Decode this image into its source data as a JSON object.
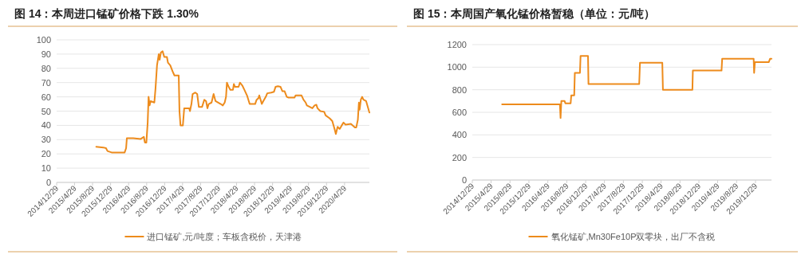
{
  "chart_data": [
    {
      "type": "line",
      "title": "图 14：本周进口锰矿价格下跌 1.30%",
      "legend": "bottom",
      "grid": "y",
      "marker": "none",
      "line_style": "solid",
      "x": [
        "2015-09-23",
        "2015-11-10",
        "2015-11-28",
        "2015-12-08",
        "2016-01-05",
        "2016-04-02",
        "2016-04-12",
        "2016-04-17",
        "2016-05-30",
        "2016-07-20",
        "2016-08-10",
        "2016-08-17",
        "2016-08-27",
        "2016-09-05",
        "2016-09-11",
        "2016-09-18",
        "2016-09-25",
        "2016-10-20",
        "2016-10-28",
        "2016-11-07",
        "2016-11-19",
        "2016-11-25",
        "2016-12-03",
        "2016-12-15",
        "2016-12-26",
        "2017-01-13",
        "2017-01-20",
        "2017-02-05",
        "2017-02-20",
        "2017-03-05",
        "2017-04-03",
        "2017-04-08",
        "2017-04-15",
        "2017-05-01",
        "2017-05-10",
        "2017-06-13",
        "2017-06-18",
        "2017-06-28",
        "2017-07-06",
        "2017-07-24",
        "2017-08-06",
        "2017-08-17",
        "2017-09-08",
        "2017-09-23",
        "2017-10-05",
        "2017-10-14",
        "2017-10-23",
        "2017-11-11",
        "2017-11-25",
        "2017-12-08",
        "2018-01-12",
        "2018-01-26",
        "2018-02-08",
        "2018-02-17",
        "2018-02-23",
        "2018-03-07",
        "2018-03-18",
        "2018-04-05",
        "2018-04-11",
        "2018-04-19",
        "2018-05-13",
        "2018-05-22",
        "2018-06-07",
        "2018-06-21",
        "2018-07-09",
        "2018-07-27",
        "2018-09-02",
        "2018-09-12",
        "2018-09-24",
        "2018-09-30",
        "2018-10-09",
        "2018-10-17",
        "2018-10-27",
        "2018-11-13",
        "2018-11-23",
        "2018-12-20",
        "2019-01-07",
        "2019-01-18",
        "2019-02-03",
        "2019-02-21",
        "2019-03-05",
        "2019-03-20",
        "2019-04-04",
        "2019-04-16",
        "2019-05-26",
        "2019-06-03",
        "2019-07-13",
        "2019-07-26",
        "2019-08-10",
        "2019-08-18",
        "2019-09-06",
        "2019-09-24",
        "2019-10-09",
        "2019-10-21",
        "2019-10-29",
        "2019-11-17",
        "2019-12-13",
        "2019-12-23",
        "2020-01-19",
        "2020-02-06",
        "2020-02-20",
        "2020-03-01",
        "2020-03-13",
        "2020-03-27",
        "2020-04-10",
        "2020-04-22",
        "2020-05-06",
        "2020-06-11",
        "2020-07-08",
        "2020-07-17",
        "2020-07-28",
        "2020-08-04",
        "2020-08-09",
        "2020-08-17",
        "2020-08-26",
        "2020-09-04",
        "2020-09-22",
        "2020-10-06",
        "2020-10-14"
      ],
      "series": [
        {
          "name": "进口锰矿,元/吨度；车板含税价，天津港",
          "color": "#ed8b1c",
          "values": [
            25,
            24.5,
            24,
            22,
            21,
            21,
            24,
            31,
            31,
            30.5,
            32,
            28,
            28,
            42,
            60,
            54,
            57,
            56,
            66,
            82,
            90,
            86,
            91,
            92,
            88,
            88,
            84,
            82,
            78,
            75,
            75,
            50,
            40,
            40,
            52,
            52,
            50,
            55,
            62,
            63,
            62,
            53,
            53,
            58,
            57,
            52,
            55,
            56,
            62,
            57,
            55,
            54,
            56,
            60,
            70,
            67,
            65,
            65,
            69,
            67,
            67,
            70,
            68,
            65,
            61,
            55,
            55,
            58,
            59,
            61,
            58,
            55,
            57,
            60,
            62.5,
            63,
            63.5,
            67,
            67.5,
            67,
            64,
            64,
            60,
            59.5,
            59.5,
            61,
            61,
            58,
            56,
            54,
            53,
            52,
            54,
            54.5,
            52,
            50,
            49.5,
            47,
            45,
            43,
            38,
            34,
            39,
            37.5,
            40,
            42,
            40.5,
            41,
            38.5,
            38.5,
            44,
            56,
            51,
            58,
            60,
            58,
            57,
            52,
            49
          ]
        }
      ],
      "ylim": [
        0,
        100
      ],
      "yticks": [
        0,
        10,
        20,
        30,
        40,
        50,
        60,
        70,
        80,
        90,
        100
      ],
      "xlim": [
        "2014-12-29",
        "2020-10-14"
      ],
      "xticks": [
        {
          "value": "2014-12-29",
          "label": "2014/12/29"
        },
        {
          "value": "2015-04-29",
          "label": "2015/4/29"
        },
        {
          "value": "2015-08-29",
          "label": "2015/8/29"
        },
        {
          "value": "2015-12-29",
          "label": "2015/12/29"
        },
        {
          "value": "2016-04-29",
          "label": "2016/4/29"
        },
        {
          "value": "2016-08-29",
          "label": "2016/8/29"
        },
        {
          "value": "2016-12-29",
          "label": "2016/12/29"
        },
        {
          "value": "2017-04-29",
          "label": "2017/4/29"
        },
        {
          "value": "2017-08-29",
          "label": "2017/8/29"
        },
        {
          "value": "2017-12-29",
          "label": "2017/12/29"
        },
        {
          "value": "2018-04-29",
          "label": "2018/4/29"
        },
        {
          "value": "2018-08-29",
          "label": "2018/8/29"
        },
        {
          "value": "2018-12-29",
          "label": "2018/12/29"
        },
        {
          "value": "2019-04-29",
          "label": "2019/4/29"
        },
        {
          "value": "2019-08-29",
          "label": "2019/8/29"
        },
        {
          "value": "2019-12-29",
          "label": "2019/12/29"
        },
        {
          "value": "2020-04-29",
          "label": "2020/4/29"
        }
      ]
    },
    {
      "type": "line",
      "title": "图 15：本周国产氧化锰价格暂稳（单位：元/吨）",
      "legend": "bottom",
      "grid": "y",
      "marker": "none",
      "line_style": "solid",
      "x": [
        "2015-07-09",
        "2016-07-16",
        "2016-07-20",
        "2016-07-25",
        "2016-08-15",
        "2016-08-20",
        "2016-09-23",
        "2016-09-27",
        "2016-10-16",
        "2016-10-20",
        "2016-11-22",
        "2016-11-26",
        "2017-01-13",
        "2017-01-16",
        "2017-12-09",
        "2017-12-14",
        "2018-05-07",
        "2018-05-11",
        "2018-11-17",
        "2018-11-20",
        "2019-05-24",
        "2019-05-28",
        "2019-12-17",
        "2019-12-20",
        "2019-12-25",
        "2020-03-24",
        "2020-04-01",
        "2020-04-10"
      ],
      "series": [
        {
          "name": "氧化锰矿,Mn30Fe10P双零块，出厂不含税",
          "color": "#ed8b1c",
          "values": [
            670,
            670,
            550,
            700,
            700,
            680,
            680,
            750,
            750,
            950,
            950,
            1100,
            1100,
            850,
            850,
            1040,
            1040,
            800,
            800,
            970,
            970,
            1075,
            1075,
            950,
            1045,
            1045,
            1075,
            1075
          ]
        }
      ],
      "ylim": [
        0,
        1200
      ],
      "yticks": [
        0,
        200,
        400,
        600,
        800,
        1000,
        1200
      ],
      "xlim": [
        "2014-12-29",
        "2020-04-10"
      ],
      "xticks": [
        {
          "value": "2014-12-29",
          "label": "2014/12/29"
        },
        {
          "value": "2015-04-29",
          "label": "2015/4/29"
        },
        {
          "value": "2015-08-29",
          "label": "2015/8/29"
        },
        {
          "value": "2015-12-29",
          "label": "2015/12/29"
        },
        {
          "value": "2016-04-29",
          "label": "2016/4/29"
        },
        {
          "value": "2016-08-29",
          "label": "2016/8/29"
        },
        {
          "value": "2016-12-29",
          "label": "2016/12/29"
        },
        {
          "value": "2017-04-29",
          "label": "2017/4/29"
        },
        {
          "value": "2017-08-29",
          "label": "2017/8/29"
        },
        {
          "value": "2017-12-29",
          "label": "2017/12/29"
        },
        {
          "value": "2018-04-29",
          "label": "2018/4/29"
        },
        {
          "value": "2018-08-29",
          "label": "2018/8/29"
        },
        {
          "value": "2018-12-29",
          "label": "2018/12/29"
        },
        {
          "value": "2019-04-29",
          "label": "2019/4/29"
        },
        {
          "value": "2019-08-29",
          "label": "2019/8/29"
        },
        {
          "value": "2019-12-29",
          "label": "2019/12/29"
        }
      ]
    }
  ]
}
